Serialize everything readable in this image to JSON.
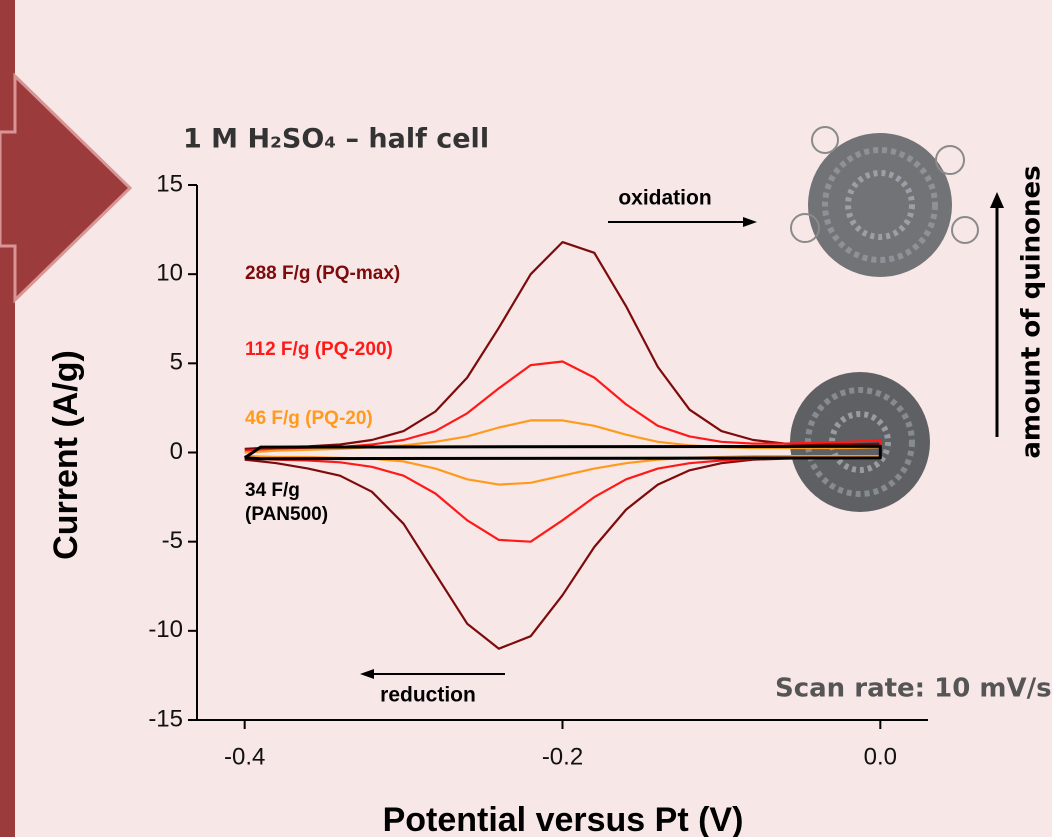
{
  "chart_data": {
    "type": "line",
    "title": "1 M H₂SO₄ – half cell",
    "x_label": "Potential versus Pt (V)",
    "y_label": "Current (A/g)",
    "annotations": [
      "oxidation",
      "reduction",
      "Scan rate: 10 mV/s",
      "amount of quinones"
    ],
    "xlim": [
      -0.43,
      0.03
    ],
    "ylim": [
      -15,
      15
    ],
    "xticks": [
      -0.4,
      -0.2,
      {
        "value": 0,
        "label": "0.0"
      }
    ],
    "yticks": [
      15,
      10,
      5,
      0,
      -5,
      -10,
      -15
    ],
    "series": [
      {
        "name": "288 F/g (PQ-max)",
        "color": "#7d0b0b",
        "x": [
          -0.4,
          -0.38,
          -0.36,
          -0.34,
          -0.32,
          -0.3,
          -0.28,
          -0.26,
          -0.24,
          -0.22,
          -0.2,
          -0.18,
          -0.16,
          -0.14,
          -0.12,
          -0.1,
          -0.08,
          -0.06,
          -0.04,
          -0.02,
          0,
          0,
          -0.02,
          -0.04,
          -0.06,
          -0.08,
          -0.1,
          -0.12,
          -0.14,
          -0.16,
          -0.18,
          -0.2,
          -0.22,
          -0.24,
          -0.26,
          -0.28,
          -0.3,
          -0.32,
          -0.34,
          -0.36,
          -0.38,
          -0.4
        ],
        "values": [
          0.2,
          0.3,
          0.35,
          0.45,
          0.7,
          1.2,
          2.3,
          4.2,
          7.0,
          10.0,
          11.8,
          11.2,
          8.2,
          4.8,
          2.4,
          1.2,
          0.7,
          0.5,
          0.45,
          0.45,
          0.5,
          -0.3,
          -0.3,
          -0.3,
          -0.35,
          -0.4,
          -0.6,
          -1.0,
          -1.8,
          -3.2,
          -5.3,
          -8.0,
          -10.3,
          -11.0,
          -9.6,
          -6.8,
          -4.0,
          -2.2,
          -1.3,
          -0.9,
          -0.6,
          -0.4
        ]
      },
      {
        "name": "112 F/g (PQ-200)",
        "color": "#ff1a1a",
        "x": [
          -0.4,
          -0.38,
          -0.36,
          -0.34,
          -0.32,
          -0.3,
          -0.28,
          -0.26,
          -0.24,
          -0.22,
          -0.2,
          -0.18,
          -0.16,
          -0.14,
          -0.12,
          -0.1,
          -0.08,
          -0.06,
          -0.04,
          -0.02,
          0,
          0,
          -0.02,
          -0.04,
          -0.06,
          -0.08,
          -0.1,
          -0.12,
          -0.14,
          -0.16,
          -0.18,
          -0.2,
          -0.22,
          -0.24,
          -0.26,
          -0.28,
          -0.3,
          -0.32,
          -0.34,
          -0.36,
          -0.38,
          -0.4
        ],
        "values": [
          0.1,
          0.2,
          0.25,
          0.3,
          0.45,
          0.7,
          1.2,
          2.2,
          3.6,
          4.9,
          5.1,
          4.2,
          2.7,
          1.5,
          0.9,
          0.6,
          0.5,
          0.5,
          0.55,
          0.6,
          0.7,
          -0.3,
          -0.3,
          -0.3,
          -0.3,
          -0.35,
          -0.45,
          -0.6,
          -0.9,
          -1.5,
          -2.5,
          -3.8,
          -5.0,
          -4.9,
          -3.8,
          -2.3,
          -1.3,
          -0.8,
          -0.55,
          -0.45,
          -0.4,
          -0.3
        ]
      },
      {
        "name": "46 F/g (PQ-20)",
        "color": "#ff9a1c",
        "x": [
          -0.4,
          -0.38,
          -0.36,
          -0.34,
          -0.32,
          -0.3,
          -0.28,
          -0.26,
          -0.24,
          -0.22,
          -0.2,
          -0.18,
          -0.16,
          -0.14,
          -0.12,
          -0.1,
          -0.08,
          -0.06,
          -0.04,
          -0.02,
          0,
          0,
          -0.02,
          -0.04,
          -0.06,
          -0.08,
          -0.1,
          -0.12,
          -0.14,
          -0.16,
          -0.18,
          -0.2,
          -0.22,
          -0.24,
          -0.26,
          -0.28,
          -0.3,
          -0.32,
          -0.34,
          -0.36,
          -0.38,
          -0.4
        ],
        "values": [
          0,
          0.1,
          0.15,
          0.2,
          0.3,
          0.4,
          0.6,
          0.9,
          1.4,
          1.8,
          1.8,
          1.5,
          1.0,
          0.6,
          0.4,
          0.3,
          0.25,
          0.25,
          0.25,
          0.25,
          0.3,
          -0.2,
          -0.2,
          -0.2,
          -0.2,
          -0.2,
          -0.25,
          -0.3,
          -0.4,
          -0.6,
          -0.9,
          -1.3,
          -1.7,
          -1.8,
          -1.5,
          -0.9,
          -0.5,
          -0.35,
          -0.3,
          -0.25,
          -0.25,
          -0.2
        ]
      },
      {
        "name": "34 F/g (PAN500)",
        "color": "#000000",
        "x": [
          -0.4,
          -0.39,
          0,
          0,
          -0.39,
          -0.4
        ],
        "values": [
          -0.3,
          0.3,
          0.35,
          -0.3,
          -0.35,
          -0.3
        ]
      }
    ]
  }
}
